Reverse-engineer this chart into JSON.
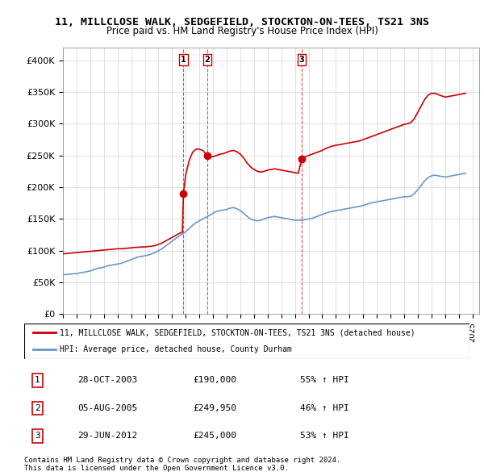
{
  "title": "11, MILLCLOSE WALK, SEDGEFIELD, STOCKTON-ON-TEES, TS21 3NS",
  "subtitle": "Price paid vs. HM Land Registry's House Price Index (HPI)",
  "ylabel_ticks": [
    "£0",
    "£50K",
    "£100K",
    "£150K",
    "£200K",
    "£250K",
    "£300K",
    "£350K",
    "£400K"
  ],
  "ytick_values": [
    0,
    50000,
    100000,
    150000,
    200000,
    250000,
    300000,
    350000,
    400000
  ],
  "ylim": [
    0,
    420000
  ],
  "xlim_start": 1995.0,
  "xlim_end": 2025.5,
  "sale_dates": [
    2003.83,
    2005.58,
    2012.5
  ],
  "sale_prices": [
    190000,
    249950,
    245000
  ],
  "sale_labels": [
    "1",
    "2",
    "3"
  ],
  "sale_date_strs": [
    "28-OCT-2003",
    "05-AUG-2005",
    "29-JUN-2012"
  ],
  "sale_price_strs": [
    "£190,000",
    "£249,950",
    "£245,000"
  ],
  "sale_hpi_strs": [
    "55% ↑ HPI",
    "46% ↑ HPI",
    "53% ↑ HPI"
  ],
  "red_color": "#cc0000",
  "blue_color": "#6699cc",
  "legend_label_red": "11, MILLCLOSE WALK, SEDGEFIELD, STOCKTON-ON-TEES, TS21 3NS (detached house)",
  "legend_label_blue": "HPI: Average price, detached house, County Durham",
  "footer_line1": "Contains HM Land Registry data © Crown copyright and database right 2024.",
  "footer_line2": "This data is licensed under the Open Government Licence v3.0.",
  "hpi_x": [
    1995.0,
    1995.25,
    1995.5,
    1995.75,
    1996.0,
    1996.25,
    1996.5,
    1996.75,
    1997.0,
    1997.25,
    1997.5,
    1997.75,
    1998.0,
    1998.25,
    1998.5,
    1998.75,
    1999.0,
    1999.25,
    1999.5,
    1999.75,
    2000.0,
    2000.25,
    2000.5,
    2000.75,
    2001.0,
    2001.25,
    2001.5,
    2001.75,
    2002.0,
    2002.25,
    2002.5,
    2002.75,
    2003.0,
    2003.25,
    2003.5,
    2003.75,
    2004.0,
    2004.25,
    2004.5,
    2004.75,
    2005.0,
    2005.25,
    2005.5,
    2005.75,
    2006.0,
    2006.25,
    2006.5,
    2006.75,
    2007.0,
    2007.25,
    2007.5,
    2007.75,
    2008.0,
    2008.25,
    2008.5,
    2008.75,
    2009.0,
    2009.25,
    2009.5,
    2009.75,
    2010.0,
    2010.25,
    2010.5,
    2010.75,
    2011.0,
    2011.25,
    2011.5,
    2011.75,
    2012.0,
    2012.25,
    2012.5,
    2012.75,
    2013.0,
    2013.25,
    2013.5,
    2013.75,
    2014.0,
    2014.25,
    2014.5,
    2014.75,
    2015.0,
    2015.25,
    2015.5,
    2015.75,
    2016.0,
    2016.25,
    2016.5,
    2016.75,
    2017.0,
    2017.25,
    2017.5,
    2017.75,
    2018.0,
    2018.25,
    2018.5,
    2018.75,
    2019.0,
    2019.25,
    2019.5,
    2019.75,
    2020.0,
    2020.25,
    2020.5,
    2020.75,
    2021.0,
    2021.25,
    2021.5,
    2021.75,
    2022.0,
    2022.25,
    2022.5,
    2022.75,
    2023.0,
    2023.25,
    2023.5,
    2023.75,
    2024.0,
    2024.25,
    2024.5
  ],
  "hpi_y": [
    62000,
    62500,
    63000,
    63500,
    64000,
    65000,
    66000,
    67000,
    68000,
    70000,
    72000,
    73000,
    74000,
    76000,
    77000,
    78000,
    79000,
    80000,
    82000,
    84000,
    86000,
    88000,
    90000,
    91000,
    92000,
    93000,
    95000,
    97000,
    100000,
    103000,
    107000,
    111000,
    115000,
    119000,
    123000,
    126000,
    130000,
    135000,
    140000,
    144000,
    147000,
    150000,
    153000,
    156000,
    159000,
    162000,
    163000,
    164000,
    165000,
    167000,
    168000,
    166000,
    163000,
    159000,
    154000,
    150000,
    148000,
    147000,
    148000,
    150000,
    152000,
    153000,
    154000,
    153000,
    152000,
    151000,
    150000,
    149000,
    148000,
    148000,
    148000,
    149000,
    150000,
    151000,
    153000,
    155000,
    157000,
    159000,
    161000,
    162000,
    163000,
    164000,
    165000,
    166000,
    167000,
    168000,
    169000,
    170000,
    171000,
    173000,
    175000,
    176000,
    177000,
    178000,
    179000,
    180000,
    181000,
    182000,
    183000,
    184000,
    185000,
    185000,
    186000,
    190000,
    196000,
    203000,
    210000,
    215000,
    218000,
    219000,
    218000,
    217000,
    216000,
    217000,
    218000,
    219000,
    220000,
    221000,
    222000
  ],
  "prop_x": [
    1995.0,
    1995.25,
    1995.5,
    1995.75,
    1996.0,
    1996.25,
    1996.5,
    1996.75,
    1997.0,
    1997.25,
    1997.5,
    1997.75,
    1998.0,
    1998.25,
    1998.5,
    1998.75,
    1999.0,
    1999.25,
    1999.5,
    1999.75,
    2000.0,
    2000.25,
    2000.5,
    2000.75,
    2001.0,
    2001.25,
    2001.5,
    2001.75,
    2002.0,
    2002.25,
    2002.5,
    2002.75,
    2003.0,
    2003.25,
    2003.5,
    2003.75,
    2003.83,
    2004.0,
    2004.25,
    2004.5,
    2004.75,
    2005.0,
    2005.25,
    2005.5,
    2005.58,
    2005.75,
    2006.0,
    2006.25,
    2006.5,
    2006.75,
    2007.0,
    2007.25,
    2007.5,
    2007.75,
    2008.0,
    2008.25,
    2008.5,
    2008.75,
    2009.0,
    2009.25,
    2009.5,
    2009.75,
    2010.0,
    2010.25,
    2010.5,
    2010.75,
    2011.0,
    2011.25,
    2011.5,
    2011.75,
    2012.0,
    2012.25,
    2012.5,
    2012.75,
    2013.0,
    2013.25,
    2013.5,
    2013.75,
    2014.0,
    2014.25,
    2014.5,
    2014.75,
    2015.0,
    2015.25,
    2015.5,
    2015.75,
    2016.0,
    2016.25,
    2016.5,
    2016.75,
    2017.0,
    2017.25,
    2017.5,
    2017.75,
    2018.0,
    2018.25,
    2018.5,
    2018.75,
    2019.0,
    2019.25,
    2019.5,
    2019.75,
    2020.0,
    2020.25,
    2020.5,
    2020.75,
    2021.0,
    2021.25,
    2021.5,
    2021.75,
    2022.0,
    2022.25,
    2022.5,
    2022.75,
    2023.0,
    2023.25,
    2023.5,
    2023.75,
    2024.0,
    2024.25,
    2024.5
  ],
  "prop_y": [
    95000,
    95500,
    96000,
    96500,
    97000,
    97500,
    98000,
    98500,
    99000,
    99500,
    100000,
    100500,
    101000,
    101500,
    102000,
    102500,
    103000,
    103000,
    103500,
    104000,
    104500,
    105000,
    105500,
    105800,
    106000,
    106500,
    107000,
    108000,
    110000,
    112000,
    115000,
    118000,
    121000,
    124000,
    127000,
    129000,
    190000,
    220000,
    242000,
    255000,
    260000,
    260000,
    258000,
    252000,
    249950,
    248000,
    248000,
    250000,
    252000,
    253000,
    255000,
    257000,
    258000,
    256000,
    252000,
    246000,
    238000,
    232000,
    228000,
    225000,
    224000,
    225000,
    227000,
    228000,
    229000,
    228000,
    227000,
    226000,
    225000,
    224000,
    223000,
    222000,
    245000,
    248000,
    250000,
    252000,
    254000,
    256000,
    258000,
    261000,
    263000,
    265000,
    266000,
    267000,
    268000,
    269000,
    270000,
    271000,
    272000,
    273000,
    275000,
    277000,
    279000,
    281000,
    283000,
    285000,
    287000,
    289000,
    291000,
    293000,
    295000,
    297000,
    299000,
    300000,
    302000,
    308000,
    318000,
    328000,
    338000,
    345000,
    348000,
    348000,
    346000,
    344000,
    342000,
    343000,
    344000,
    345000,
    346000,
    347000,
    348000
  ]
}
